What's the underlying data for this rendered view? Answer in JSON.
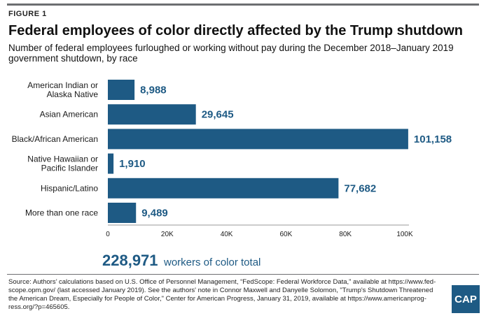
{
  "figure_label": "FIGURE 1",
  "title": "Federal employees of color directly affected by the Trump shutdown",
  "subtitle": "Number of federal employees furloughed or working without pay during the December 2018–January 2019 government shutdown, by race",
  "total": {
    "number": "228,971",
    "text": "workers of color total"
  },
  "source": "Source: Authors’ calculations based on U.S. Office of Personnel Management, “FedScope: Federal Workforce Data,” available at https://www.fed-scope.opm.gov/ (last accessed January 2019). See the authors' note in Connor Maxwell and Danyelle Solomon, \"Trump's Shutdown Threatened the American Dream, Especially for People of Color,\" Center for American Progress, January 31, 2019, available at https://www.americanprog-ress.org/?p=465605.",
  "logo_text": "CAP",
  "colors": {
    "bar": "#1e5a84",
    "label": "#1e5a84",
    "rule": "#6d6e71"
  },
  "chart_data": {
    "type": "bar",
    "orientation": "horizontal",
    "categories": [
      [
        "American Indian or",
        "Alaska Native"
      ],
      [
        "Asian American"
      ],
      [
        "Black/African American"
      ],
      [
        "Native Hawaiian or",
        "Pacific Islander"
      ],
      [
        "Hispanic/Latino"
      ],
      [
        "More than one race"
      ]
    ],
    "values": [
      8988,
      29645,
      101158,
      1910,
      77682,
      9489
    ],
    "value_labels": [
      "8,988",
      "29,645",
      "101,158",
      "1,910",
      "77,682",
      "9,489"
    ],
    "xlim": [
      0,
      100000
    ],
    "ticks": [
      0,
      20000,
      40000,
      60000,
      80000,
      100000
    ],
    "tick_labels": [
      "0",
      "20K",
      "40K",
      "60K",
      "80K",
      "100K"
    ],
    "grid": false
  }
}
